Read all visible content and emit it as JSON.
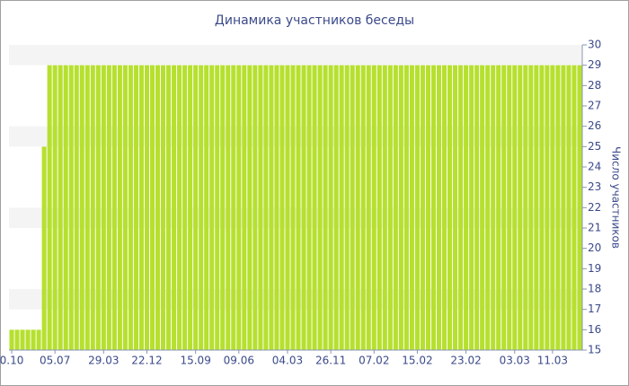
{
  "chart_data": {
    "type": "bar",
    "title": "Динамика участников беседы",
    "y_label": "Число участников",
    "color": "#b6e02f",
    "axis_side": "right",
    "categories": [
      "0.10",
      null,
      null,
      null,
      null,
      null,
      null,
      null,
      "05.07",
      null,
      null,
      null,
      null,
      null,
      null,
      null,
      null,
      "29.03",
      null,
      null,
      null,
      null,
      null,
      null,
      null,
      "22.12",
      null,
      null,
      null,
      null,
      null,
      null,
      null,
      null,
      "15.09",
      null,
      null,
      null,
      null,
      null,
      null,
      null,
      "09.06",
      null,
      null,
      null,
      null,
      null,
      null,
      null,
      null,
      "04.03",
      null,
      null,
      null,
      null,
      null,
      null,
      null,
      "26.11",
      null,
      null,
      null,
      null,
      null,
      null,
      null,
      "07.02",
      null,
      null,
      null,
      null,
      null,
      null,
      null,
      "15.02",
      null,
      null,
      null,
      null,
      null,
      null,
      null,
      null,
      "23.02",
      null,
      null,
      null,
      null,
      null,
      null,
      null,
      null,
      "03.03",
      null,
      null,
      null,
      null,
      null,
      null,
      "11.03",
      null,
      null,
      null,
      null,
      null
    ],
    "values": [
      16,
      16,
      16,
      16,
      16,
      16,
      25,
      29,
      29,
      29,
      29,
      29,
      29,
      29,
      29,
      29,
      29,
      29,
      29,
      29,
      29,
      29,
      29,
      29,
      29,
      29,
      29,
      29,
      29,
      29,
      29,
      29,
      29,
      29,
      29,
      29,
      29,
      29,
      29,
      29,
      29,
      29,
      29,
      29,
      29,
      29,
      29,
      29,
      29,
      29,
      29,
      29,
      29,
      29,
      29,
      29,
      29,
      29,
      29,
      29,
      29,
      29,
      29,
      29,
      29,
      29,
      29,
      29,
      29,
      29,
      29,
      29,
      29,
      29,
      29,
      29,
      29,
      29,
      29,
      29,
      29,
      29,
      29,
      29,
      29,
      29,
      29,
      29,
      29,
      29,
      29,
      29,
      29,
      29,
      29,
      29,
      29,
      29,
      29,
      29,
      29,
      29,
      29,
      29,
      29,
      29
    ],
    "ylim": [
      15,
      30
    ],
    "yticks": [
      15,
      16,
      17,
      18,
      19,
      20,
      21,
      22,
      23,
      24,
      25,
      26,
      27,
      28,
      29,
      30
    ],
    "grid": "bands"
  }
}
